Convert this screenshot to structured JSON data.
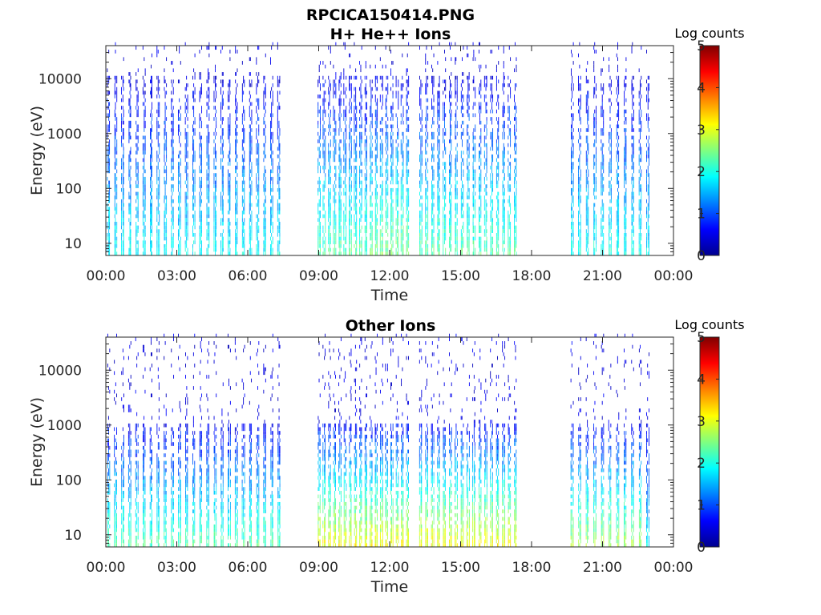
{
  "figure": {
    "main_title": "RPCICA150414.PNG"
  },
  "colorscale": [
    "#00008f",
    "#0000ff",
    "#0080ff",
    "#00ffff",
    "#80ff80",
    "#ffff00",
    "#ff8000",
    "#ff0000",
    "#800000"
  ],
  "chart_data": [
    {
      "type": "heatmap",
      "title": "H+ He++ Ions",
      "xlabel": "Time",
      "ylabel": "Energy (eV)",
      "x_ticks": [
        "00:00",
        "03:00",
        "06:00",
        "09:00",
        "12:00",
        "15:00",
        "18:00",
        "21:00",
        "00:00"
      ],
      "x_range_hours": [
        0,
        24
      ],
      "y_ticks": [
        "10",
        "100",
        "1000",
        "10000"
      ],
      "y_scale": "log",
      "y_range": [
        6,
        40000
      ],
      "colorbar": {
        "label": "Log counts",
        "ticks": [
          "0",
          "1",
          "2",
          "3",
          "4",
          "5"
        ],
        "range": [
          0,
          5
        ]
      },
      "data_segments_hours": [
        [
          0.1,
          7.5
        ],
        [
          9.0,
          17.3
        ],
        [
          19.7,
          22.9
        ]
      ],
      "sweep_intervals_hours": [
        [
          0.1,
          7.5,
          0.3
        ],
        [
          9.0,
          12.8,
          0.22
        ],
        [
          13.3,
          17.3,
          0.25
        ],
        [
          19.7,
          22.9,
          0.32
        ]
      ],
      "sweep_peak_log_counts": [
        [
          [
            0.1,
            7.5
          ],
          1.6
        ],
        [
          [
            9.0,
            11.0
          ],
          2.0
        ],
        [
          [
            11.0,
            12.8
          ],
          2.2
        ],
        [
          [
            13.3,
            17.3
          ],
          2.0
        ],
        [
          [
            19.7,
            22.9
          ],
          1.7
        ]
      ],
      "energy_cutoff_high": 10000,
      "grid": false
    },
    {
      "type": "heatmap",
      "title": "Other Ions",
      "xlabel": "Time",
      "ylabel": "Energy (eV)",
      "x_ticks": [
        "00:00",
        "03:00",
        "06:00",
        "09:00",
        "12:00",
        "15:00",
        "18:00",
        "21:00",
        "00:00"
      ],
      "x_range_hours": [
        0,
        24
      ],
      "y_ticks": [
        "10",
        "100",
        "1000",
        "10000"
      ],
      "y_scale": "log",
      "y_range": [
        6,
        40000
      ],
      "colorbar": {
        "label": "Log counts",
        "ticks": [
          "0",
          "1",
          "2",
          "3",
          "4",
          "5"
        ],
        "range": [
          0,
          5
        ]
      },
      "data_segments_hours": [
        [
          0.1,
          7.5
        ],
        [
          9.0,
          17.3
        ],
        [
          19.7,
          22.9
        ]
      ],
      "sweep_intervals_hours": [
        [
          0.1,
          7.5,
          0.3
        ],
        [
          9.0,
          12.8,
          0.22
        ],
        [
          13.3,
          17.3,
          0.25
        ],
        [
          19.7,
          22.9,
          0.32
        ]
      ],
      "sweep_peak_log_counts": [
        [
          [
            0.1,
            7.5
          ],
          2.0
        ],
        [
          [
            9.0,
            12.8
          ],
          2.8
        ],
        [
          [
            13.3,
            17.3
          ],
          2.8
        ],
        [
          [
            19.7,
            22.9
          ],
          2.4
        ]
      ],
      "energy_cutoff_high": 1000,
      "grid": false
    }
  ]
}
